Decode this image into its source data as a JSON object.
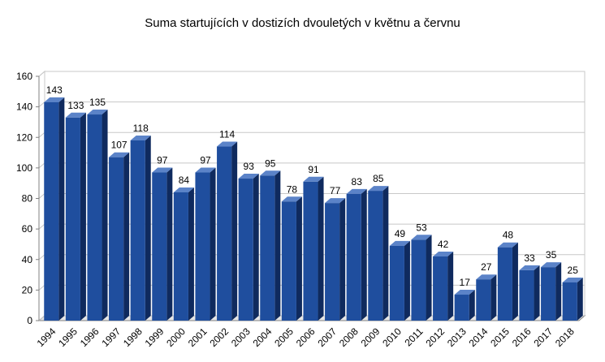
{
  "chart_data": {
    "type": "bar",
    "title": "Suma startujících v dostizích dvouletých v květnu a červnu",
    "xlabel": "",
    "ylabel": "",
    "categories": [
      "1994",
      "1995",
      "1996",
      "1997",
      "1998",
      "1999",
      "2000",
      "2001",
      "2002",
      "2003",
      "2004",
      "2005",
      "2006",
      "2007",
      "2008",
      "2009",
      "2010",
      "2011",
      "2012",
      "2013",
      "2014",
      "2015",
      "2016",
      "2017",
      "2018"
    ],
    "values": [
      143,
      133,
      135,
      107,
      118,
      97,
      84,
      97,
      114,
      93,
      95,
      78,
      91,
      77,
      83,
      85,
      49,
      53,
      42,
      17,
      27,
      48,
      33,
      35,
      25
    ],
    "ylim": [
      0,
      160
    ],
    "yticks": [
      0,
      20,
      40,
      60,
      80,
      100,
      120,
      140,
      160
    ],
    "grid": true,
    "legend": "none",
    "style": "3d-column"
  },
  "colors": {
    "bar_front": "#1F4E9E",
    "bar_side": "#0F2A5E",
    "bar_top": "#5B83C8",
    "grid": "#C8C8C8",
    "axis": "#808080"
  }
}
